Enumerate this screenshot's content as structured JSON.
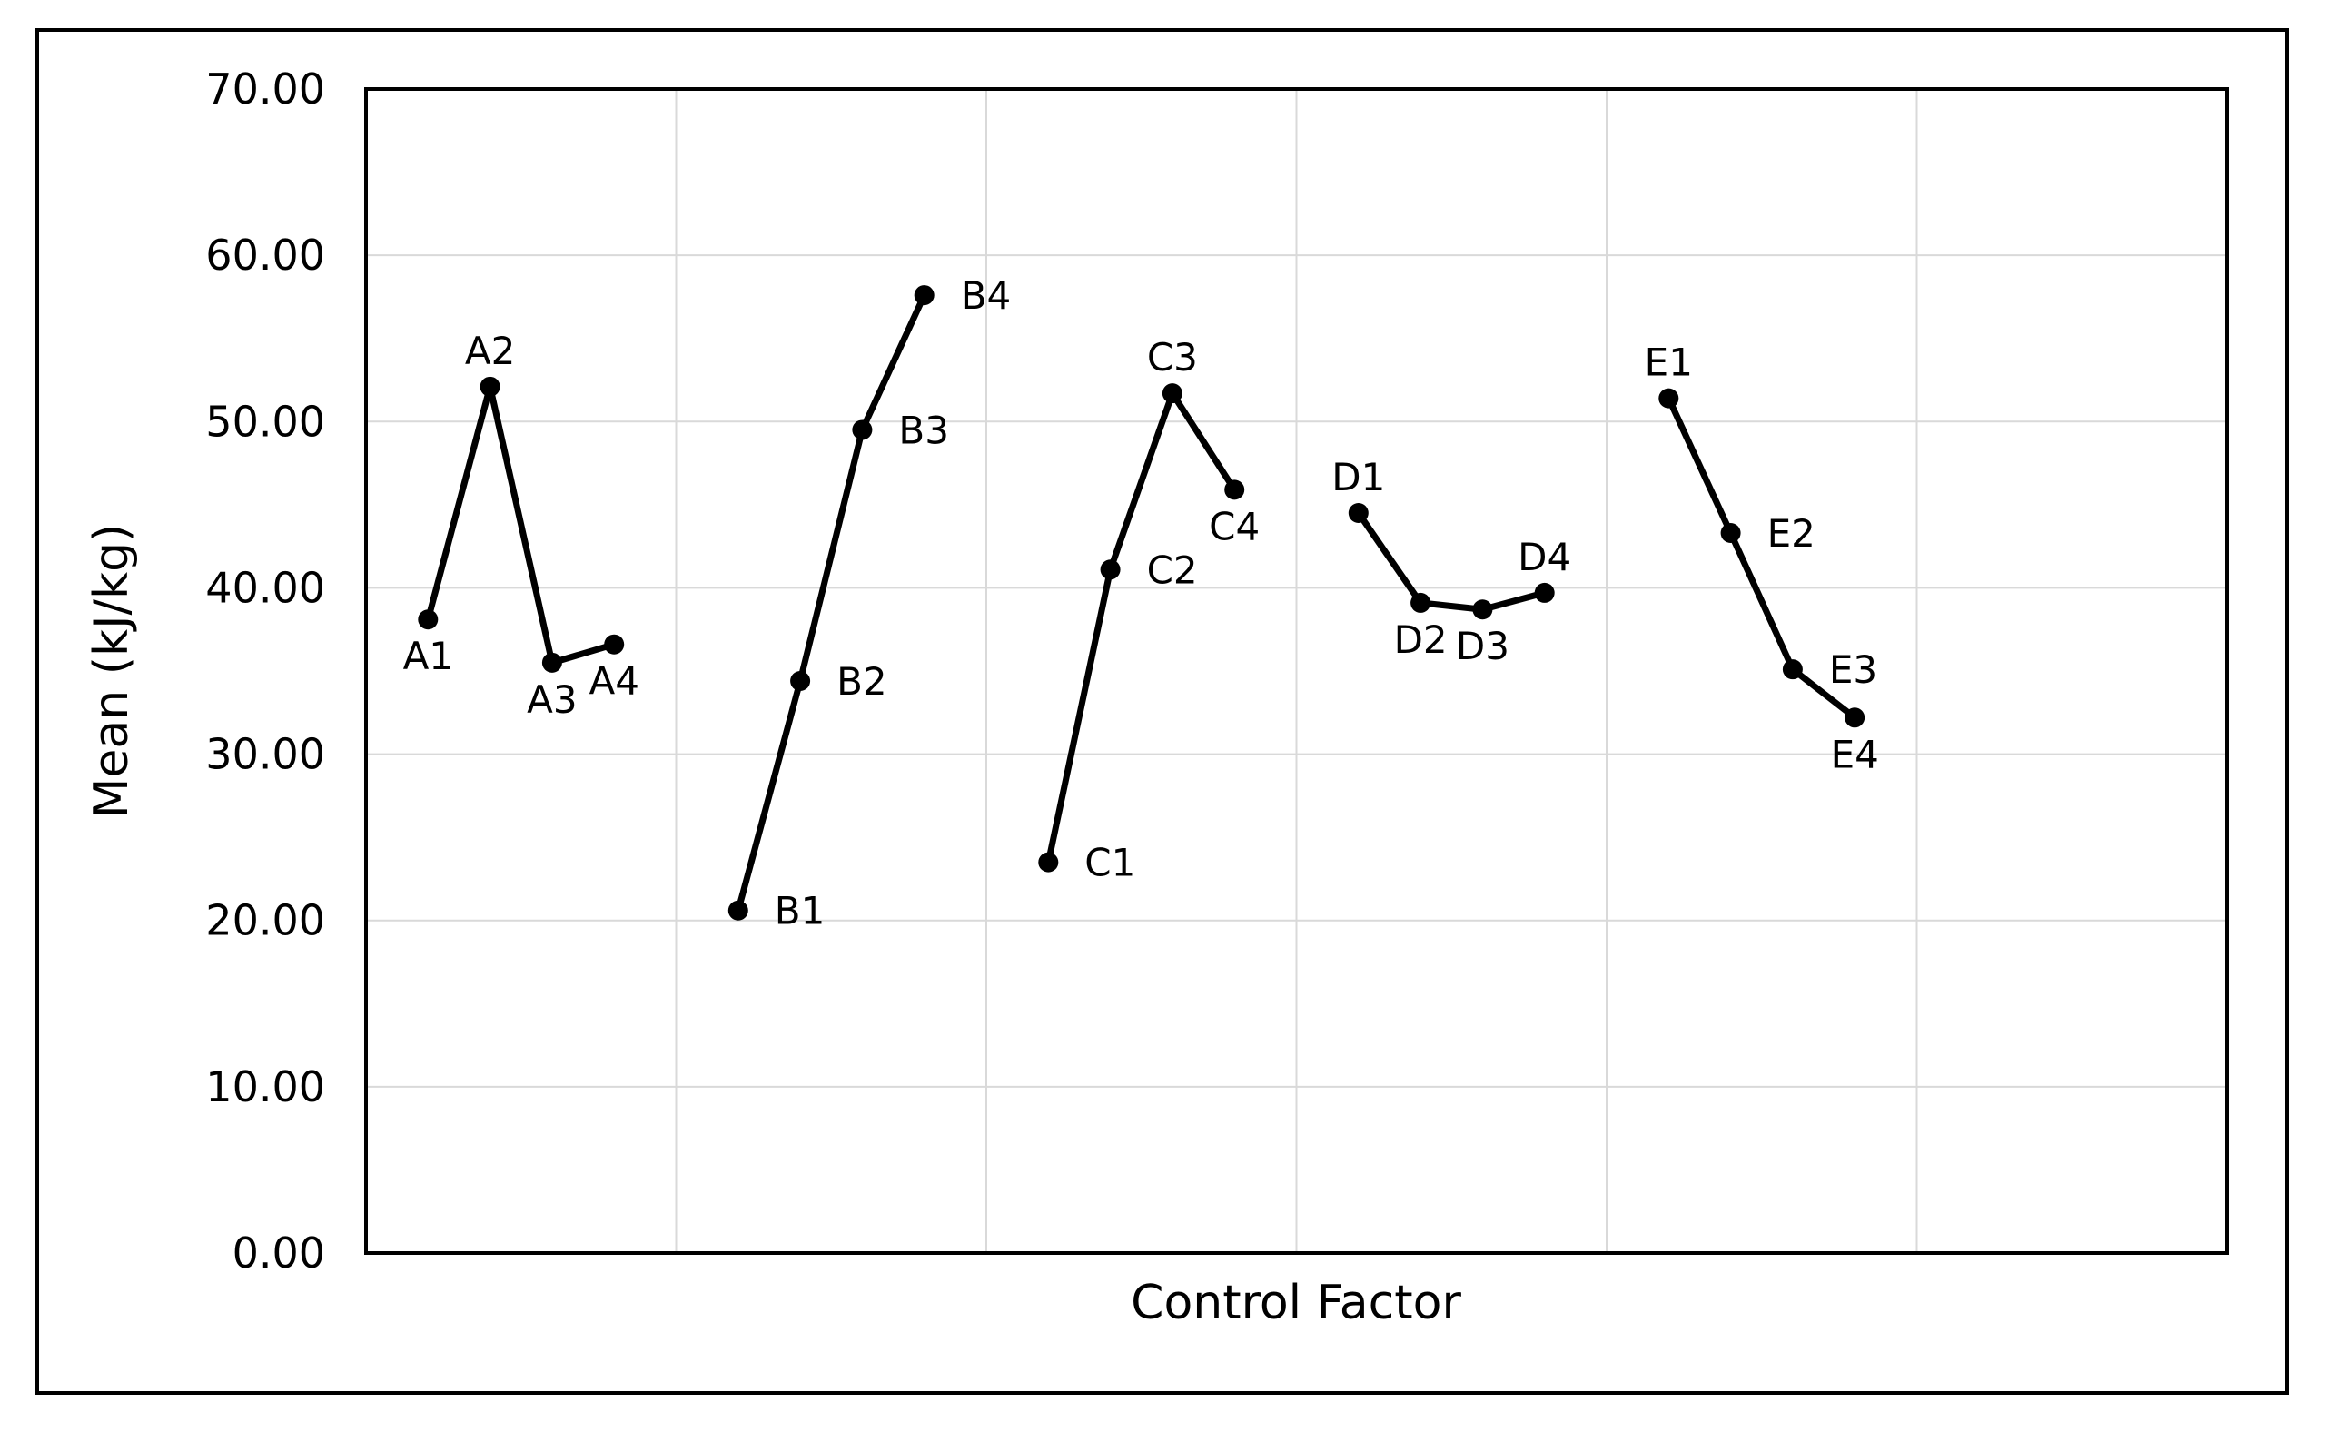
{
  "figure": {
    "background": "#ffffff",
    "border_color": "#000000"
  },
  "chart_data": {
    "type": "line",
    "title": "",
    "xlabel": "Control Factor",
    "ylabel": "Mean (kJ/kg)",
    "ylim": [
      0,
      70
    ],
    "y_ticks": [
      {
        "value": 0,
        "label": "0.00"
      },
      {
        "value": 10,
        "label": "10.00"
      },
      {
        "value": 20,
        "label": "20.00"
      },
      {
        "value": 30,
        "label": "30.00"
      },
      {
        "value": 40,
        "label": "40.00"
      },
      {
        "value": 50,
        "label": "50.00"
      },
      {
        "value": 60,
        "label": "60.00"
      },
      {
        "value": 70,
        "label": "70.00"
      }
    ],
    "grid": "both",
    "legend": "none",
    "num_columns": 6,
    "colors": {
      "line": "#000000",
      "marker": "#000000",
      "grid": "#d9d9d9",
      "plot_border": "#000000",
      "text": "#000000"
    },
    "series": [
      {
        "name": "A",
        "column": 0,
        "points": [
          {
            "label": "A1",
            "value": 38.1,
            "label_pos": "below"
          },
          {
            "label": "A2",
            "value": 52.1,
            "label_pos": "above"
          },
          {
            "label": "A3",
            "value": 35.5,
            "label_pos": "below"
          },
          {
            "label": "A4",
            "value": 36.6,
            "label_pos": "below"
          }
        ]
      },
      {
        "name": "B",
        "column": 1,
        "points": [
          {
            "label": "B1",
            "value": 20.6,
            "label_pos": "right"
          },
          {
            "label": "B2",
            "value": 34.4,
            "label_pos": "right"
          },
          {
            "label": "B3",
            "value": 49.5,
            "label_pos": "right"
          },
          {
            "label": "B4",
            "value": 57.6,
            "label_pos": "right"
          }
        ]
      },
      {
        "name": "C",
        "column": 2,
        "points": [
          {
            "label": "C1",
            "value": 23.5,
            "label_pos": "right"
          },
          {
            "label": "C2",
            "value": 41.1,
            "label_pos": "right"
          },
          {
            "label": "C3",
            "value": 51.7,
            "label_pos": "above"
          },
          {
            "label": "C4",
            "value": 45.9,
            "label_pos": "below"
          }
        ]
      },
      {
        "name": "D",
        "column": 3,
        "points": [
          {
            "label": "D1",
            "value": 44.5,
            "label_pos": "above"
          },
          {
            "label": "D2",
            "value": 39.1,
            "label_pos": "below"
          },
          {
            "label": "D3",
            "value": 38.7,
            "label_pos": "below"
          },
          {
            "label": "D4",
            "value": 39.7,
            "label_pos": "above"
          }
        ]
      },
      {
        "name": "E",
        "column": 4,
        "points": [
          {
            "label": "E1",
            "value": 51.4,
            "label_pos": "above"
          },
          {
            "label": "E2",
            "value": 43.3,
            "label_pos": "right"
          },
          {
            "label": "E3",
            "value": 35.1,
            "label_pos": "right"
          },
          {
            "label": "E4",
            "value": 32.2,
            "label_pos": "below"
          }
        ]
      }
    ]
  }
}
